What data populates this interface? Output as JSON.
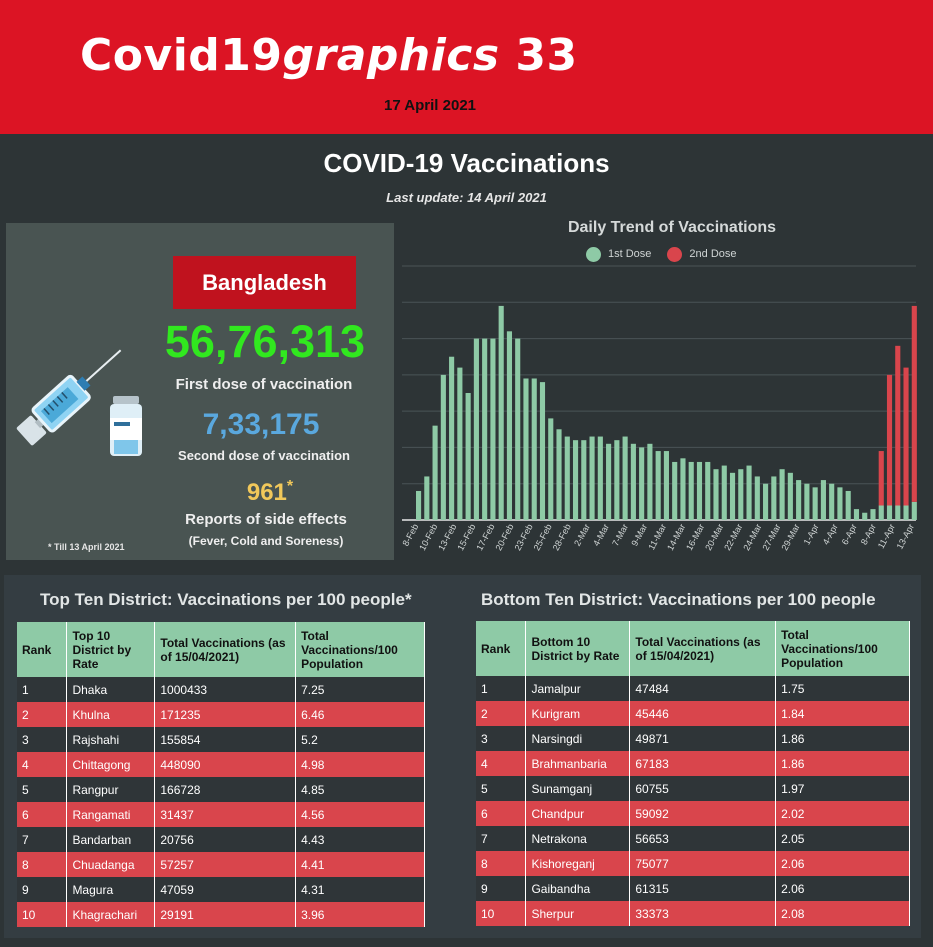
{
  "header": {
    "brand_plain": "Covid19",
    "brand_italic": "graphics",
    "brand_number": "33",
    "date": "17 April 2021"
  },
  "page": {
    "title": "COVID-19  Vaccinations",
    "last_update": "Last update: 14 April 2021"
  },
  "summary": {
    "country": "Bangladesh",
    "first_dose": "56,76,313",
    "first_dose_label": "First dose of vaccination",
    "second_dose": "7,33,175",
    "second_dose_label": "Second dose of vaccination",
    "side_effects": "961",
    "side_effects_mark": "*",
    "side_effects_label": "Reports of side effects",
    "side_effects_sub": "(Fever, Cold and Soreness)",
    "note": "* Till 13 April 2021"
  },
  "colors": {
    "header_red": "#dc1424",
    "first_dose": "#8ecaa6",
    "second_dose": "#d9454c",
    "big_green": "#31e81f",
    "blue": "#5aa8de",
    "gold": "#f1c85a"
  },
  "chart_data": {
    "type": "bar",
    "stacked": true,
    "title": "Daily Trend of Vaccinations",
    "legend_position": "top",
    "grid": true,
    "xlabel": "",
    "ylabel": "",
    "series": [
      {
        "name": "1st Dose",
        "color": "#8ecaa6",
        "values": [
          8,
          12,
          26,
          40,
          45,
          42,
          35,
          50,
          50,
          50,
          59,
          52,
          50,
          39,
          39,
          38,
          28,
          25,
          23,
          22,
          22,
          23,
          23,
          21,
          22,
          23,
          21,
          20,
          21,
          19,
          19,
          16,
          17,
          16,
          16,
          16,
          14,
          15,
          13,
          14,
          15,
          12,
          10,
          12,
          14,
          13,
          11,
          10,
          9,
          11,
          10,
          9,
          8,
          3,
          2,
          3,
          4,
          4,
          4,
          4,
          5
        ]
      },
      {
        "name": "2nd Dose",
        "color": "#d9454c",
        "values": [
          0,
          0,
          0,
          0,
          0,
          0,
          0,
          0,
          0,
          0,
          0,
          0,
          0,
          0,
          0,
          0,
          0,
          0,
          0,
          0,
          0,
          0,
          0,
          0,
          0,
          0,
          0,
          0,
          0,
          0,
          0,
          0,
          0,
          0,
          0,
          0,
          0,
          0,
          0,
          0,
          0,
          0,
          0,
          0,
          0,
          0,
          0,
          0,
          0,
          0,
          0,
          0,
          0,
          0,
          0,
          0,
          15,
          36,
          44,
          38,
          54
        ]
      }
    ],
    "x_tick_labels": [
      "8-Feb",
      "10-Feb",
      "13-Feb",
      "15-Feb",
      "17-Feb",
      "20-Feb",
      "23-Feb",
      "25-Feb",
      "28-Feb",
      "2-Mar",
      "4-Mar",
      "7-Mar",
      "9-Mar",
      "11-Mar",
      "14-Mar",
      "16-Mar",
      "20-Mar",
      "22-Mar",
      "24-Mar",
      "27-Mar",
      "29-Mar",
      "1-Apr",
      "4-Apr",
      "6-Apr",
      "8-Apr",
      "11-Apr",
      "13-Apr"
    ]
  },
  "top_table": {
    "title": "Top Ten District: Vaccinations per 100 people*",
    "headers": [
      "Rank",
      "Top 10 District by Rate",
      "Total Vaccinations (as of 15/04/2021)",
      "Total Vaccinations/100 Population"
    ],
    "rows": [
      [
        "1",
        "Dhaka",
        "1000433",
        "7.25"
      ],
      [
        "2",
        "Khulna",
        "171235",
        "6.46"
      ],
      [
        "3",
        "Rajshahi",
        "155854",
        "5.2"
      ],
      [
        "4",
        "Chittagong",
        "448090",
        "4.98"
      ],
      [
        "5",
        "Rangpur",
        "166728",
        "4.85"
      ],
      [
        "6",
        "Rangamati",
        "31437",
        "4.56"
      ],
      [
        "7",
        "Bandarban",
        "20756",
        "4.43"
      ],
      [
        "8",
        "Chuadanga",
        "57257",
        "4.41"
      ],
      [
        "9",
        "Magura",
        "47059",
        "4.31"
      ],
      [
        "10",
        "Khagrachari",
        "29191",
        "3.96"
      ]
    ]
  },
  "bottom_table": {
    "title": "Bottom Ten District: Vaccinations per 100 people",
    "headers": [
      "Rank",
      "Bottom 10 District by Rate",
      "Total Vaccinations (as of 15/04/2021)",
      "Total Vaccinations/100 Population"
    ],
    "rows": [
      [
        "1",
        "Jamalpur",
        "47484",
        "1.75"
      ],
      [
        "2",
        "Kurigram",
        "45446",
        "1.84"
      ],
      [
        "3",
        "Narsingdi",
        "49871",
        "1.86"
      ],
      [
        "4",
        "Brahmanbaria",
        "67183",
        "1.86"
      ],
      [
        "5",
        "Sunamganj",
        "60755",
        "1.97"
      ],
      [
        "6",
        "Chandpur",
        "59092",
        "2.02"
      ],
      [
        "7",
        "Netrakona",
        "56653",
        "2.05"
      ],
      [
        "8",
        "Kishoreganj",
        "75077",
        "2.06"
      ],
      [
        "9",
        "Gaibandha",
        "61315",
        "2.06"
      ],
      [
        "10",
        "Sherpur",
        "33373",
        "2.08"
      ]
    ]
  }
}
